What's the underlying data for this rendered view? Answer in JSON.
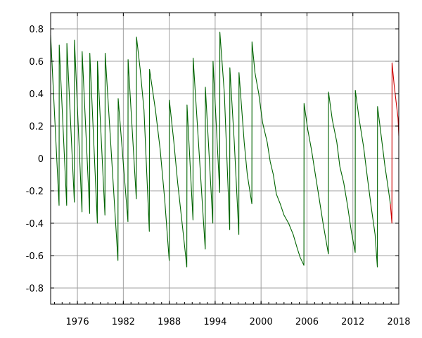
{
  "chart_data": {
    "type": "line",
    "title": "",
    "xlabel": "",
    "ylabel": "",
    "xlim": [
      1972.5,
      2018
    ],
    "ylim": [
      -0.9,
      0.9
    ],
    "grid": true,
    "xticks": [
      1976,
      1982,
      1988,
      1994,
      2000,
      2006,
      2012,
      2018
    ],
    "xtick_labels": [
      "1976",
      "1982",
      "1988",
      "1994",
      "2000",
      "2006",
      "2012",
      "2018"
    ],
    "yticks": [
      0.8,
      0.6,
      0.4,
      0.2,
      0,
      -0.2,
      -0.4,
      -0.6,
      -0.8
    ],
    "ytick_labels": [
      "0.8",
      "0.6",
      "0.4",
      "0.2",
      "0",
      "-0.2",
      "-0.4",
      "-0.6",
      "-0.8"
    ],
    "series": [
      {
        "color": "#006400",
        "points": [
          [
            1972.5,
            0.76
          ],
          [
            1973.6,
            -0.29
          ],
          [
            1973.62,
            0.7
          ],
          [
            1974.6,
            -0.29
          ],
          [
            1974.62,
            0.71
          ],
          [
            1975.6,
            -0.27
          ],
          [
            1975.62,
            0.73
          ],
          [
            1976.6,
            -0.33
          ],
          [
            1976.62,
            0.66
          ],
          [
            1977.6,
            -0.34
          ],
          [
            1977.62,
            0.65
          ],
          [
            1978.6,
            -0.4
          ],
          [
            1978.62,
            0.6
          ],
          [
            1979.6,
            -0.35
          ],
          [
            1979.62,
            0.65
          ],
          [
            1981.3,
            -0.63
          ],
          [
            1981.32,
            0.37
          ],
          [
            1982.6,
            -0.39
          ],
          [
            1982.62,
            0.61
          ],
          [
            1983.7,
            -0.25
          ],
          [
            1983.72,
            0.75
          ],
          [
            1984.2,
            0.55
          ],
          [
            1984.7,
            0.3
          ],
          [
            1985.4,
            -0.45
          ],
          [
            1985.42,
            0.55
          ],
          [
            1986.2,
            0.3
          ],
          [
            1986.8,
            0.06
          ],
          [
            1987.4,
            -0.25
          ],
          [
            1988.0,
            -0.63
          ],
          [
            1988.02,
            0.36
          ],
          [
            1988.6,
            0.1
          ],
          [
            1989.1,
            -0.15
          ],
          [
            1989.8,
            -0.45
          ],
          [
            1990.3,
            -0.67
          ],
          [
            1990.32,
            0.33
          ],
          [
            1991.1,
            -0.38
          ],
          [
            1991.12,
            0.62
          ],
          [
            1992.7,
            -0.56
          ],
          [
            1992.72,
            0.44
          ],
          [
            1993.7,
            -0.4
          ],
          [
            1993.72,
            0.6
          ],
          [
            1994.6,
            -0.21
          ],
          [
            1994.62,
            0.78
          ],
          [
            1995.2,
            0.4
          ],
          [
            1995.9,
            -0.44
          ],
          [
            1995.92,
            0.56
          ],
          [
            1996.5,
            0.1
          ],
          [
            1997.1,
            -0.47
          ],
          [
            1997.12,
            0.53
          ],
          [
            1997.8,
            0.1
          ],
          [
            1998.2,
            -0.1
          ],
          [
            1998.8,
            -0.28
          ],
          [
            1998.82,
            0.72
          ],
          [
            1999.2,
            0.53
          ],
          [
            1999.7,
            0.4
          ],
          [
            2000.2,
            0.22
          ],
          [
            2000.8,
            0.1
          ],
          [
            2001.2,
            -0.02
          ],
          [
            2001.6,
            -0.1
          ],
          [
            2002.0,
            -0.22
          ],
          [
            2002.5,
            -0.28
          ],
          [
            2003.0,
            -0.35
          ],
          [
            2003.6,
            -0.4
          ],
          [
            2004.2,
            -0.47
          ],
          [
            2004.7,
            -0.55
          ],
          [
            2005.1,
            -0.61
          ],
          [
            2005.6,
            -0.66
          ],
          [
            2005.62,
            0.34
          ],
          [
            2006.1,
            0.18
          ],
          [
            2006.6,
            0.05
          ],
          [
            2007.1,
            -0.1
          ],
          [
            2007.6,
            -0.25
          ],
          [
            2008.1,
            -0.4
          ],
          [
            2008.8,
            -0.59
          ],
          [
            2008.82,
            0.41
          ],
          [
            2009.3,
            0.24
          ],
          [
            2009.9,
            0.1
          ],
          [
            2010.3,
            -0.05
          ],
          [
            2010.8,
            -0.15
          ],
          [
            2011.3,
            -0.29
          ],
          [
            2011.8,
            -0.45
          ],
          [
            2012.3,
            -0.58
          ],
          [
            2012.32,
            0.42
          ],
          [
            2012.8,
            0.25
          ],
          [
            2013.4,
            0.07
          ],
          [
            2013.9,
            -0.12
          ],
          [
            2014.4,
            -0.3
          ],
          [
            2014.9,
            -0.47
          ],
          [
            2015.2,
            -0.67
          ],
          [
            2015.22,
            0.32
          ],
          [
            2015.8,
            0.1
          ],
          [
            2016.2,
            -0.05
          ],
          [
            2016.6,
            -0.18
          ],
          [
            2016.9,
            -0.28
          ]
        ]
      },
      {
        "color": "#cc0000",
        "points": [
          [
            2016.9,
            -0.28
          ],
          [
            2017.1,
            -0.4
          ],
          [
            2017.12,
            0.59
          ],
          [
            2017.4,
            0.45
          ],
          [
            2017.7,
            0.33
          ],
          [
            2017.9,
            0.25
          ],
          [
            2018.0,
            0.14
          ]
        ]
      }
    ]
  },
  "colors": {
    "grid": "#a0a0a0",
    "frame": "#000000",
    "background": "#ffffff"
  }
}
